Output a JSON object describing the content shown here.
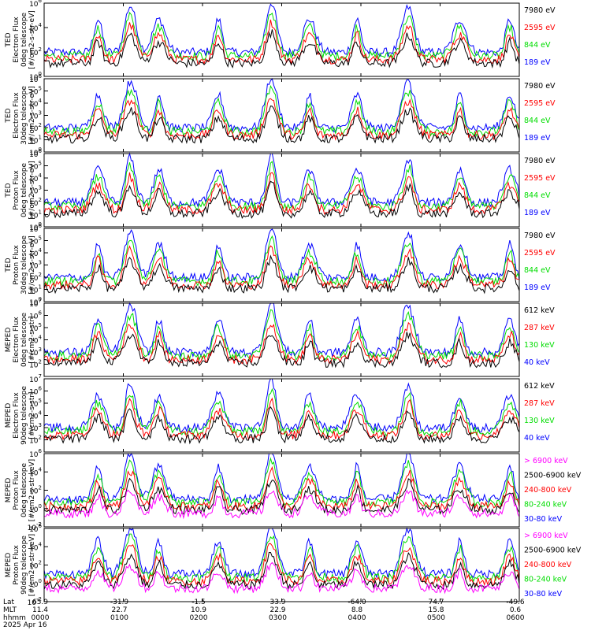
{
  "colors": {
    "blue": "#0000ff",
    "red": "#ff0000",
    "green": "#00dd00",
    "black": "#000000",
    "magenta": "#ff00ff"
  },
  "chart_data": [
    {
      "type": "line",
      "ylabel": [
        "TED",
        "Electron Flux",
        "0deg telescope",
        "[#/cm2-s-str-eV]"
      ],
      "ylim_exp": [
        0,
        6
      ],
      "yticks_exp": [
        0,
        2,
        4,
        6
      ],
      "legend": [
        {
          "label": "7980 eV",
          "color": "black"
        },
        {
          "label": "2595 eV",
          "color": "red"
        },
        {
          "label": "844 eV",
          "color": "green"
        },
        {
          "label": "189 eV",
          "color": "blue"
        }
      ]
    },
    {
      "type": "line",
      "ylabel": [
        "TED",
        "Electron Flux",
        "30deg telescope",
        "[#/cm2-s-str-eV]"
      ],
      "ylim_exp": [
        0,
        6
      ],
      "yticks_exp": [
        0,
        1,
        2,
        3,
        4,
        5,
        6
      ],
      "legend": [
        {
          "label": "7980 eV",
          "color": "black"
        },
        {
          "label": "2595 eV",
          "color": "red"
        },
        {
          "label": "844 eV",
          "color": "green"
        },
        {
          "label": "189 eV",
          "color": "blue"
        }
      ]
    },
    {
      "type": "line",
      "ylabel": [
        "TED",
        "Proton Flux",
        "0deg telescope",
        "[#/cm2-s-str-eV]"
      ],
      "ylim_exp": [
        0,
        6
      ],
      "yticks_exp": [
        0,
        1,
        2,
        3,
        4,
        5,
        6
      ],
      "legend": [
        {
          "label": "7980 eV",
          "color": "black"
        },
        {
          "label": "2595 eV",
          "color": "red"
        },
        {
          "label": "844 eV",
          "color": "green"
        },
        {
          "label": "189 eV",
          "color": "blue"
        }
      ]
    },
    {
      "type": "line",
      "ylabel": [
        "TED",
        "Proton Flux",
        "30deg telescope",
        "[#/cm2-s-str-eV]"
      ],
      "ylim_exp": [
        0,
        6
      ],
      "yticks_exp": [
        0,
        1,
        2,
        3,
        4,
        5,
        6
      ],
      "legend": [
        {
          "label": "7980 eV",
          "color": "black"
        },
        {
          "label": "2595 eV",
          "color": "red"
        },
        {
          "label": "844 eV",
          "color": "green"
        },
        {
          "label": "189 eV",
          "color": "blue"
        }
      ]
    },
    {
      "type": "line",
      "ylabel": [
        "MEPED",
        "Electron Flux",
        "0deg telescope",
        "[#/cm2-s-str]"
      ],
      "ylim_exp": [
        1,
        7
      ],
      "yticks_exp": [
        2,
        3,
        4,
        5,
        6,
        7
      ],
      "legend": [
        {
          "label": "612 keV",
          "color": "black"
        },
        {
          "label": "287 keV",
          "color": "red"
        },
        {
          "label": "130 keV",
          "color": "green"
        },
        {
          "label": "40 keV",
          "color": "blue"
        }
      ]
    },
    {
      "type": "line",
      "ylabel": [
        "MEPED",
        "Electron Flux",
        "90deg telescope",
        "[#/cm2-s-str]"
      ],
      "ylim_exp": [
        1,
        7
      ],
      "yticks_exp": [
        2,
        3,
        4,
        5,
        6,
        7
      ],
      "legend": [
        {
          "label": "612 keV",
          "color": "black"
        },
        {
          "label": "287 keV",
          "color": "red"
        },
        {
          "label": "130 keV",
          "color": "green"
        },
        {
          "label": "40 keV",
          "color": "blue"
        }
      ]
    },
    {
      "type": "line",
      "ylabel": [
        "MEPED",
        "Proton Flux",
        "0deg telescope",
        "[#/cm2-s-str-keV]"
      ],
      "ylim_exp": [
        -2,
        6
      ],
      "yticks_exp": [
        -2,
        0,
        2,
        4,
        6
      ],
      "legend": [
        {
          "label": "> 6900 keV",
          "color": "magenta"
        },
        {
          "label": "2500-6900 keV",
          "color": "black"
        },
        {
          "label": "240-800 keV",
          "color": "red"
        },
        {
          "label": "80-240 keV",
          "color": "green"
        },
        {
          "label": "30-80 keV",
          "color": "blue"
        }
      ]
    },
    {
      "type": "line",
      "ylabel": [
        "MEPED",
        "Proton Flux",
        "90deg telescope",
        "[#/cm2-s-str-keV]"
      ],
      "ylim_exp": [
        -2,
        6
      ],
      "yticks_exp": [
        -2,
        0,
        2,
        4,
        6
      ],
      "legend": [
        {
          "label": "> 6900 keV",
          "color": "magenta"
        },
        {
          "label": "2500-6900 keV",
          "color": "black"
        },
        {
          "label": "240-800 keV",
          "color": "red"
        },
        {
          "label": "80-240 keV",
          "color": "green"
        },
        {
          "label": "30-80 keV",
          "color": "blue"
        }
      ]
    }
  ],
  "x_axis": {
    "row_labels": [
      "Lat",
      "MLT",
      "hhmm",
      "2025 Apr 16"
    ],
    "ticks": [
      {
        "lat": "65.9",
        "mlt": "11.4",
        "hhmm": "0000"
      },
      {
        "lat": "-31.9",
        "mlt": "22.7",
        "hhmm": "0100"
      },
      {
        "lat": "-1.5",
        "mlt": "10.9",
        "hhmm": "0200"
      },
      {
        "lat": "33.9",
        "mlt": "22.9",
        "hhmm": "0300"
      },
      {
        "lat": "-64.0",
        "mlt": "8.8",
        "hhmm": "0400"
      },
      {
        "lat": "74.7",
        "mlt": "15.8",
        "hhmm": "0500"
      },
      {
        "lat": "-49.6",
        "mlt": "0.6",
        "hhmm": "0600"
      }
    ]
  }
}
